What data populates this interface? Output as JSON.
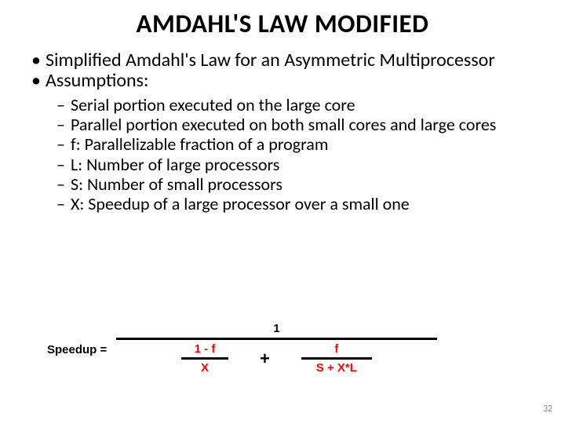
{
  "title": "AMDAHL'S LAW MODIFIED",
  "bullets": {
    "b0": "Simplified Amdahl's Law for an Asymmetric Multiprocessor",
    "b1": "Assumptions:"
  },
  "sub": {
    "s0": "Serial portion executed on the large core",
    "s1": "Parallel portion executed on both small cores and large cores",
    "s2": "f: Parallelizable fraction of a program",
    "s3": "L: Number of large processors",
    "s4": "S: Number of small processors",
    "s5": "X: Speedup of a large processor over a small one"
  },
  "formula": {
    "label": "Speedup =",
    "numerator": "1",
    "left_num": "1 - f",
    "left_den": "X",
    "plus": "+",
    "right_num": "f",
    "right_den": "S + X*L",
    "colors": {
      "fraction_text": "#ff0000",
      "bar": "#000000"
    }
  },
  "page_number": "32"
}
